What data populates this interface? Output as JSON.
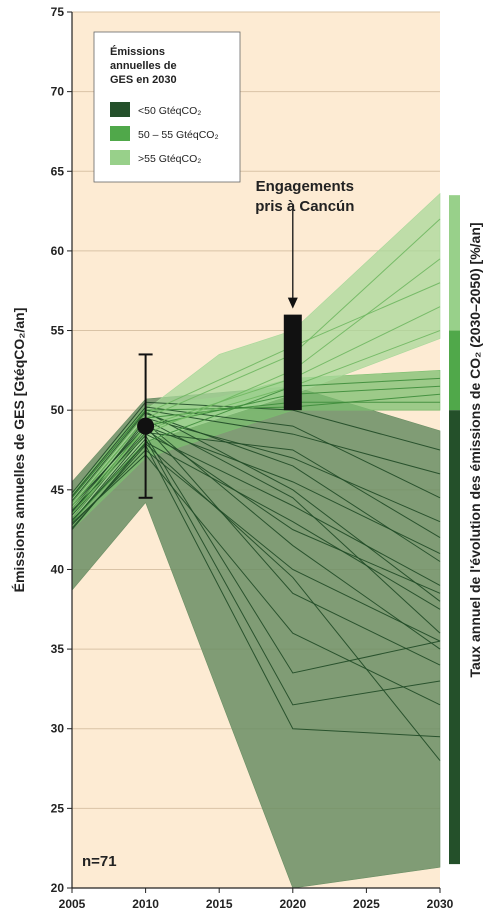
{
  "chart_data": {
    "type": "line",
    "ylabel": "Émissions annuelles de GES [GtéqCO₂/an]",
    "right_label": "Taux annuel de l'évolution des émissions de CO₂ (2030–2050) [%/an]",
    "xlim": [
      2005,
      2030
    ],
    "ylim": [
      20,
      75
    ],
    "x_ticks": [
      "2005",
      "2010",
      "2015",
      "2020",
      "2025",
      "2030"
    ],
    "y_ticks": [
      "20",
      "25",
      "30",
      "35",
      "40",
      "45",
      "50",
      "55",
      "60",
      "65",
      "70",
      "75"
    ],
    "grid": "horizontal",
    "background": "#fdebd3",
    "legend": {
      "title_lines": [
        "Émissions",
        "annuelles de",
        "GES en 2030"
      ],
      "placement": "top-left",
      "entries": [
        {
          "label": "<50 GtéqCO₂",
          "color": "#24502a"
        },
        {
          "label": "50 – 55 GtéqCO₂",
          "color": "#50a84a"
        },
        {
          "label": ">55 GtéqCO₂",
          "color": "#98d08a"
        }
      ]
    },
    "bands": [
      {
        "name": "<50 GtéqCO₂",
        "color": "#6a8e64",
        "opacity": 0.85,
        "x": [
          2005,
          2010,
          2020,
          2030
        ],
        "upper": [
          45.5,
          50.7,
          51.5,
          48.7
        ],
        "lower": [
          38.7,
          44.2,
          20.0,
          21.3
        ]
      },
      {
        "name": "50 – 55 GtéqCO₂",
        "color": "#7cbf70",
        "opacity": 0.75,
        "x": [
          2005,
          2010,
          2015,
          2020,
          2030
        ],
        "upper": [
          44.8,
          50.3,
          50.8,
          52.0,
          52.5
        ],
        "lower": [
          42.5,
          47.0,
          48.5,
          50.0,
          50.0
        ]
      },
      {
        "name": ">55 GtéqCO₂",
        "color": "#a8d89a",
        "opacity": 0.75,
        "x": [
          2005,
          2010,
          2015,
          2020,
          2030
        ],
        "upper": [
          44.5,
          50.0,
          53.5,
          55.0,
          63.6
        ],
        "lower": [
          43.0,
          48.0,
          49.5,
          51.0,
          54.5
        ]
      }
    ],
    "series_groups": [
      {
        "group": "<50 GtéqCO₂",
        "color": "#1f4a26",
        "x": [
          2005,
          2010,
          2020,
          2030
        ],
        "lines": [
          [
            44.0,
            49.5,
            47.0,
            43.0
          ],
          [
            43.5,
            49.0,
            45.5,
            41.0
          ],
          [
            43.0,
            48.5,
            44.0,
            39.0
          ],
          [
            44.5,
            50.0,
            48.5,
            46.0
          ],
          [
            42.5,
            48.0,
            43.0,
            37.5
          ],
          [
            43.8,
            49.2,
            41.5,
            35.0
          ],
          [
            44.2,
            49.8,
            46.5,
            40.5
          ],
          [
            43.2,
            48.8,
            42.5,
            38.5
          ],
          [
            42.8,
            47.5,
            40.0,
            35.5
          ],
          [
            44.6,
            50.2,
            49.0,
            44.5
          ],
          [
            43.6,
            49.4,
            44.5,
            36.0
          ],
          [
            43.0,
            48.2,
            31.5,
            33.0
          ],
          [
            42.6,
            47.8,
            30.0,
            29.5
          ],
          [
            44.0,
            49.0,
            38.5,
            34.0
          ],
          [
            43.4,
            48.6,
            47.5,
            42.0
          ],
          [
            42.9,
            47.2,
            36.0,
            31.5
          ],
          [
            44.3,
            49.9,
            45.0,
            38.0
          ],
          [
            43.7,
            48.4,
            33.5,
            35.5
          ],
          [
            44.8,
            50.5,
            50.0,
            47.5
          ],
          [
            43.1,
            47.9,
            39.5,
            28.0
          ]
        ]
      },
      {
        "group": "50 – 55 GtéqCO₂",
        "color": "#3d8c3a",
        "x": [
          2005,
          2010,
          2020,
          2030
        ],
        "lines": [
          [
            43.5,
            49.0,
            51.0,
            51.5
          ],
          [
            44.0,
            49.5,
            50.5,
            50.5
          ],
          [
            43.0,
            48.0,
            51.5,
            52.0
          ],
          [
            44.5,
            50.0,
            50.2,
            51.0
          ]
        ]
      },
      {
        "group": ">55 GtéqCO₂",
        "color": "#6fb760",
        "x": [
          2005,
          2010,
          2020,
          2030
        ],
        "lines": [
          [
            43.5,
            48.5,
            52.5,
            59.5
          ],
          [
            44.0,
            49.5,
            53.5,
            62.0
          ],
          [
            43.2,
            49.0,
            52.0,
            56.5
          ],
          [
            44.2,
            49.8,
            54.0,
            58.0
          ],
          [
            43.8,
            48.8,
            51.5,
            55.0
          ]
        ]
      }
    ],
    "error_bar": {
      "x": 2010,
      "y": 49.0,
      "low": 44.5,
      "high": 53.5
    },
    "cancun_bar": {
      "x": 2020,
      "low": 50.0,
      "high": 56.0,
      "label_lines": [
        "Engagements",
        "pris à Cancún"
      ]
    },
    "right_bar": [
      {
        "color": "#98d08a",
        "from": 55.0,
        "to": 63.5
      },
      {
        "color": "#50a84a",
        "from": 50.0,
        "to": 55.0
      },
      {
        "color": "#24502a",
        "from": 21.5,
        "to": 50.0
      }
    ],
    "n_label": "n=71"
  }
}
